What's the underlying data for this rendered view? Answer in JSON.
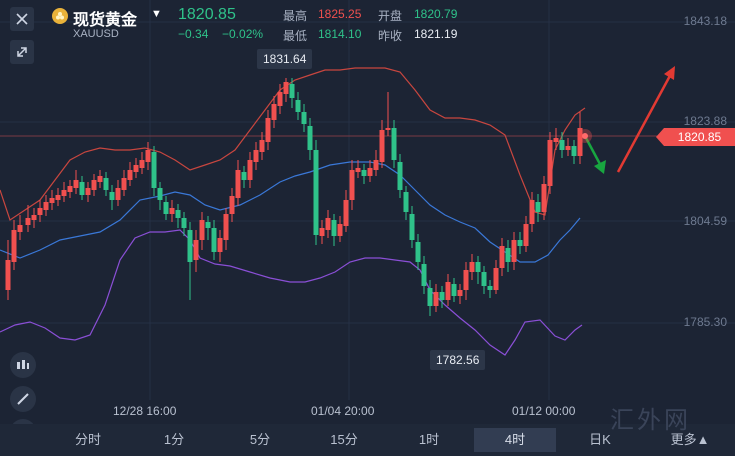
{
  "header": {
    "title": "现货黄金",
    "symbol": "XAUUSD",
    "price": "1820.85",
    "change": "−0.34",
    "change_pct": "−0.02%",
    "stats": [
      {
        "label": "最高",
        "value": "1825.25",
        "color": "#f0504f"
      },
      {
        "label": "开盘",
        "value": "1820.79",
        "color": "#2fc28a"
      },
      {
        "label": "最低",
        "value": "1814.10",
        "color": "#2fc28a"
      },
      {
        "label": "昨收",
        "value": "1821.19",
        "color": "#e8ecf3"
      }
    ]
  },
  "chart": {
    "y_ticks": [
      "1843.18",
      "1823.88",
      "1804.59",
      "1785.30"
    ],
    "x_ticks": [
      "12/28 16:00",
      "01/04 20:00",
      "01/12 00:00"
    ],
    "annotations": {
      "high": "1831.64",
      "low": "1782.56"
    },
    "last_price": "1820.85",
    "colors": {
      "up": "#f0504f",
      "down": "#2fc28a",
      "upper_band": "#c8463f",
      "mid_band": "#3a78d8",
      "lower_band": "#8a4fd6"
    }
  },
  "chart_data": {
    "type": "candlestick",
    "y_ticks": [
      1843.18,
      1823.88,
      1804.59,
      1785.3
    ],
    "x_ticks": [
      "12/28 16:00",
      "01/04 20:00",
      "01/12 00:00"
    ],
    "high_marker": 1831.64,
    "low_marker": 1782.56,
    "last_price": 1820.85,
    "indicators": [
      "upper-band",
      "middle-band",
      "lower-band"
    ]
  },
  "timeframes": [
    "分时",
    "1分",
    "5分",
    "15分",
    "1时",
    "4时",
    "日K",
    "更多▲"
  ],
  "active_timeframe": "4时",
  "watermark": "汇外网",
  "icons": [
    "close-icon",
    "expand-icon",
    "gold-coin-icon",
    "candle-style-icon",
    "pencil-icon",
    "indicator-icon"
  ]
}
